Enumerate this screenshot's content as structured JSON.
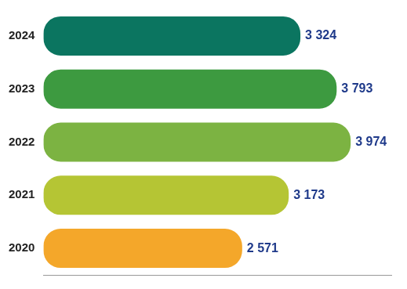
{
  "chart_data": {
    "type": "bar",
    "orientation": "horizontal",
    "categories": [
      "2024",
      "2023",
      "2022",
      "2021",
      "2020"
    ],
    "values": [
      3324,
      3793,
      3974,
      3173,
      2571
    ],
    "value_labels": [
      "3 324",
      "3 793",
      "3 974",
      "3 173",
      "2 571"
    ],
    "colors": [
      "#0b7560",
      "#3d9a40",
      "#7cb342",
      "#b5c534",
      "#f4a72a"
    ],
    "data_labels": true,
    "tick_labels": "y",
    "grid": false,
    "xlim": [
      0,
      4500
    ]
  }
}
